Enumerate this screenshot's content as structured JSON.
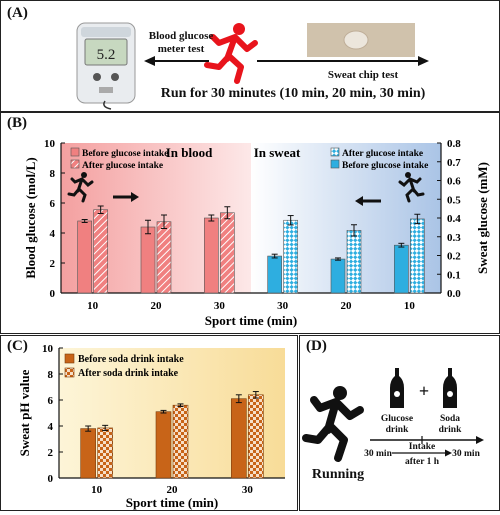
{
  "panel_a": {
    "label": "(A)",
    "meter_text": "Blood glucose\nmeter test",
    "chip_text": "Sweat chip test",
    "run_text": "Run for 30 minutes (10 min, 20 min, 30 min)",
    "meter_display": "5.2",
    "colors": {
      "runner": "#e8141c",
      "arrow": "#111111"
    },
    "icons": [
      "glucose-meter-icon",
      "runner-icon",
      "sweat-chip-photo"
    ]
  },
  "panel_b": {
    "label": "(B)"
  },
  "panel_c": {
    "label": "(C)"
  },
  "panel_d": {
    "label": "(D)",
    "glucose_label": "Glucose\ndrink",
    "soda_label": "Soda\ndrink",
    "plus": "+",
    "running": "Running",
    "t1": "30 min",
    "t2": "30 min",
    "intake": "Intake\nafter 1 h",
    "icons": [
      "runner-icon",
      "bottle-icon"
    ]
  },
  "chart_data": [
    {
      "type": "bar",
      "xlabel": "Sport time (min)",
      "ylabel": "Blood glucose (mol/L)",
      "y2label": "Sweat glucose (mM)",
      "ylim": [
        0,
        10
      ],
      "y2lim": [
        0,
        0.8
      ],
      "yticks": [
        "0",
        "2",
        "4",
        "6",
        "8",
        "10"
      ],
      "y2ticks": [
        "0.0",
        "0.1",
        "0.2",
        "0.3",
        "0.4",
        "0.5",
        "0.6",
        "0.7",
        "0.8"
      ],
      "categories": [
        "10",
        "20",
        "30",
        "30",
        "20",
        "10"
      ],
      "annotations": [
        "In blood",
        "In sweat"
      ],
      "legend_blood": [
        "Before glucose intake",
        "After glucose intake"
      ],
      "legend_sweat": [
        "After glucose intake",
        "Before glucose intake"
      ],
      "blood_before": [
        4.8,
        4.4,
        5.0
      ],
      "blood_before_err": [
        0.1,
        0.45,
        0.2
      ],
      "blood_after": [
        5.55,
        4.75,
        5.35
      ],
      "blood_after_err": [
        0.25,
        0.45,
        0.4
      ],
      "sweat_before": [
        0.255,
        0.181,
        0.197
      ],
      "sweat_before_err": [
        0.01,
        0.006,
        0.01
      ],
      "sweat_after": [
        0.395,
        0.334,
        0.388
      ],
      "sweat_after_err": [
        0.025,
        0.03,
        0.025
      ],
      "colors": {
        "blood": "#f08080",
        "sweat": "#2eaee0"
      },
      "grid": false
    },
    {
      "type": "bar",
      "xlabel": "Sport time (min)",
      "ylabel": "Sweat pH value",
      "ylim": [
        0,
        10
      ],
      "yticks": [
        "0",
        "2",
        "4",
        "6",
        "8",
        "10"
      ],
      "categories": [
        "10",
        "20",
        "30"
      ],
      "series": [
        {
          "name": "Before soda drink intake",
          "values": [
            3.8,
            5.1,
            6.1
          ],
          "err": [
            0.2,
            0.1,
            0.3
          ]
        },
        {
          "name": "After soda drink intake",
          "values": [
            3.85,
            5.6,
            6.4
          ],
          "err": [
            0.2,
            0.1,
            0.25
          ]
        }
      ],
      "colors": {
        "before": "#c86418",
        "after": "#c86418"
      },
      "grid": false,
      "legend": "top-left"
    }
  ]
}
